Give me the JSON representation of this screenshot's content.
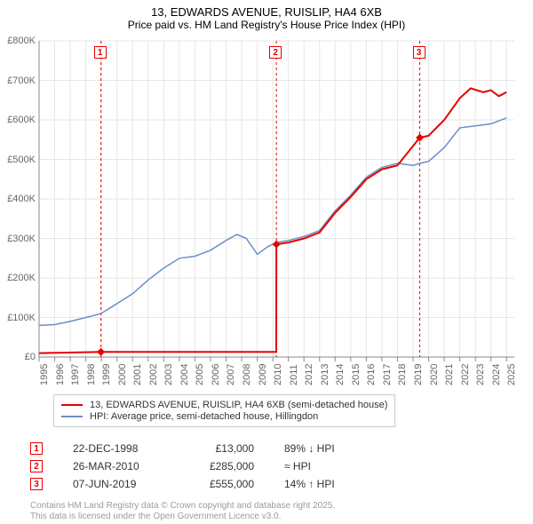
{
  "title": "13, EDWARDS AVENUE, RUISLIP, HA4 6XB",
  "subtitle": "Price paid vs. HM Land Registry's House Price Index (HPI)",
  "chart": {
    "type": "line",
    "background_color": "#ffffff",
    "grid_color": "#e6e6e6",
    "axis_color": "#888888",
    "x_years": [
      1995,
      1996,
      1997,
      1998,
      1999,
      2000,
      2001,
      2002,
      2003,
      2004,
      2005,
      2006,
      2007,
      2008,
      2009,
      2010,
      2011,
      2012,
      2013,
      2014,
      2015,
      2016,
      2017,
      2018,
      2019,
      2020,
      2021,
      2022,
      2023,
      2024,
      2025
    ],
    "xlim": [
      1995,
      2025.5
    ],
    "ylim": [
      0,
      800000
    ],
    "ytick_step": 100000,
    "ytick_labels": [
      "£0",
      "£100K",
      "£200K",
      "£300K",
      "£400K",
      "£500K",
      "£600K",
      "£700K",
      "£800K"
    ],
    "label_fontsize": 11,
    "label_color": "#666666",
    "series": {
      "hpi": {
        "color": "#6a8fc7",
        "line_width": 1.5,
        "data": [
          [
            1995,
            80000
          ],
          [
            1996,
            82000
          ],
          [
            1997,
            90000
          ],
          [
            1998,
            100000
          ],
          [
            1998.97,
            110000
          ],
          [
            2000,
            135000
          ],
          [
            2001,
            160000
          ],
          [
            2002,
            195000
          ],
          [
            2003,
            225000
          ],
          [
            2004,
            250000
          ],
          [
            2005,
            255000
          ],
          [
            2006,
            270000
          ],
          [
            2007,
            295000
          ],
          [
            2007.7,
            310000
          ],
          [
            2008.3,
            300000
          ],
          [
            2009,
            260000
          ],
          [
            2009.7,
            280000
          ],
          [
            2010.23,
            290000
          ],
          [
            2011,
            295000
          ],
          [
            2012,
            305000
          ],
          [
            2013,
            320000
          ],
          [
            2014,
            370000
          ],
          [
            2015,
            410000
          ],
          [
            2016,
            455000
          ],
          [
            2017,
            480000
          ],
          [
            2018,
            490000
          ],
          [
            2019,
            485000
          ],
          [
            2019.43,
            490000
          ],
          [
            2020,
            495000
          ],
          [
            2021,
            530000
          ],
          [
            2022,
            580000
          ],
          [
            2023,
            585000
          ],
          [
            2024,
            590000
          ],
          [
            2025,
            605000
          ]
        ]
      },
      "price": {
        "color": "#e60000",
        "line_width": 2,
        "data": [
          [
            1995,
            10000
          ],
          [
            1998.97,
            13000
          ],
          [
            1998.971,
            13000
          ],
          [
            2010.22,
            13000
          ],
          [
            2010.23,
            285000
          ],
          [
            2011,
            290000
          ],
          [
            2012,
            300000
          ],
          [
            2013,
            315000
          ],
          [
            2014,
            365000
          ],
          [
            2015,
            405000
          ],
          [
            2016,
            450000
          ],
          [
            2017,
            475000
          ],
          [
            2018,
            485000
          ],
          [
            2019.43,
            555000
          ],
          [
            2020,
            560000
          ],
          [
            2021,
            600000
          ],
          [
            2022,
            655000
          ],
          [
            2022.7,
            680000
          ],
          [
            2023.5,
            670000
          ],
          [
            2024,
            675000
          ],
          [
            2024.5,
            660000
          ],
          [
            2025,
            670000
          ]
        ]
      }
    },
    "markers": [
      {
        "x": 1998.97,
        "y": 13000,
        "color": "#e60000"
      },
      {
        "x": 2010.23,
        "y": 285000,
        "color": "#e60000"
      },
      {
        "x": 2019.43,
        "y": 555000,
        "color": "#e60000"
      }
    ],
    "event_lines": [
      {
        "x": 1998.97,
        "num": "1",
        "color": "#e60000"
      },
      {
        "x": 2010.23,
        "num": "2",
        "color": "#e60000"
      },
      {
        "x": 2019.43,
        "num": "3",
        "color": "#e60000"
      }
    ]
  },
  "legend": {
    "items": [
      {
        "color": "#e60000",
        "label": "13, EDWARDS AVENUE, RUISLIP, HA4 6XB (semi-detached house)"
      },
      {
        "color": "#6a8fc7",
        "label": "HPI: Average price, semi-detached house, Hillingdon"
      }
    ]
  },
  "events_table": [
    {
      "num": "1",
      "date": "22-DEC-1998",
      "price": "£13,000",
      "delta": "89% ↓ HPI"
    },
    {
      "num": "2",
      "date": "26-MAR-2010",
      "price": "£285,000",
      "delta": "≈ HPI"
    },
    {
      "num": "3",
      "date": "07-JUN-2019",
      "price": "£555,000",
      "delta": "14% ↑ HPI"
    }
  ],
  "credit": {
    "line1": "Contains HM Land Registry data © Crown copyright and database right 2025.",
    "line2": "This data is licensed under the Open Government Licence v3.0."
  }
}
